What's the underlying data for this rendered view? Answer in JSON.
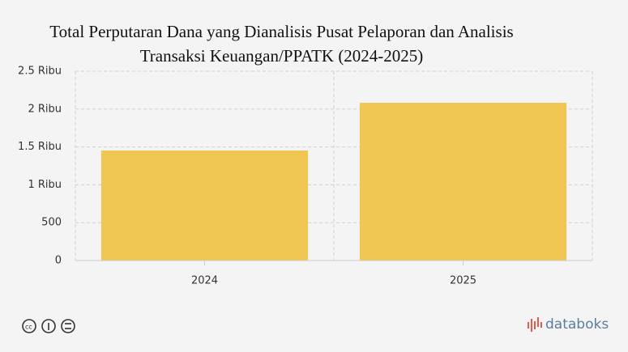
{
  "chart_data": {
    "type": "bar",
    "title": "Total Perputaran Dana yang Dianalisis Pusat Pelaporan dan Analisis Transaksi Keuangan/PPATK (2024-2025)",
    "categories": [
      "2024",
      "2025"
    ],
    "values": [
      1453,
      2083
    ],
    "color": "#f0c752",
    "ylim": [
      0,
      2500
    ],
    "yticks": [
      0,
      500,
      {
        "value": 1000,
        "label": "1 Ribu"
      },
      {
        "value": 1500,
        "label": "1.5 Ribu"
      },
      {
        "value": 2000,
        "label": "2 Ribu"
      },
      {
        "value": 2500,
        "label": "2.5 Ribu"
      }
    ],
    "grid": true
  },
  "brand": "databoks"
}
